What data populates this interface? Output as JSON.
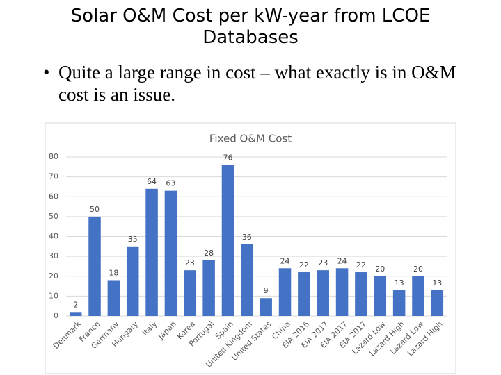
{
  "header": {
    "title": "Solar O&M Cost per kW-year from LCOE Databases"
  },
  "bullets": [
    "Quite a large range in cost – what exactly is in O&M cost is an issue."
  ],
  "chart_data": {
    "type": "bar",
    "title": "Fixed O&M Cost",
    "categories": [
      "Denmark",
      "France",
      "Germany",
      "Hungary",
      "Italy",
      "Japan",
      "Korea",
      "Portugal",
      "Spain",
      "United Kingdom",
      "United States",
      "China",
      "EIA 2016",
      "EIA 2017",
      "EIA 2017",
      "EIA 2017",
      "Lazard Low",
      "Lazard High",
      "Lazard Low",
      "Lazard High"
    ],
    "values": [
      2,
      50,
      18,
      35,
      64,
      63,
      23,
      28,
      76,
      36,
      9,
      24,
      22,
      23,
      24,
      22,
      20,
      13,
      20,
      13
    ],
    "color": "#4472c4",
    "ylim": [
      0,
      80
    ],
    "yticks": [
      0,
      10,
      20,
      30,
      40,
      50,
      60,
      70,
      80
    ],
    "grid": true
  }
}
